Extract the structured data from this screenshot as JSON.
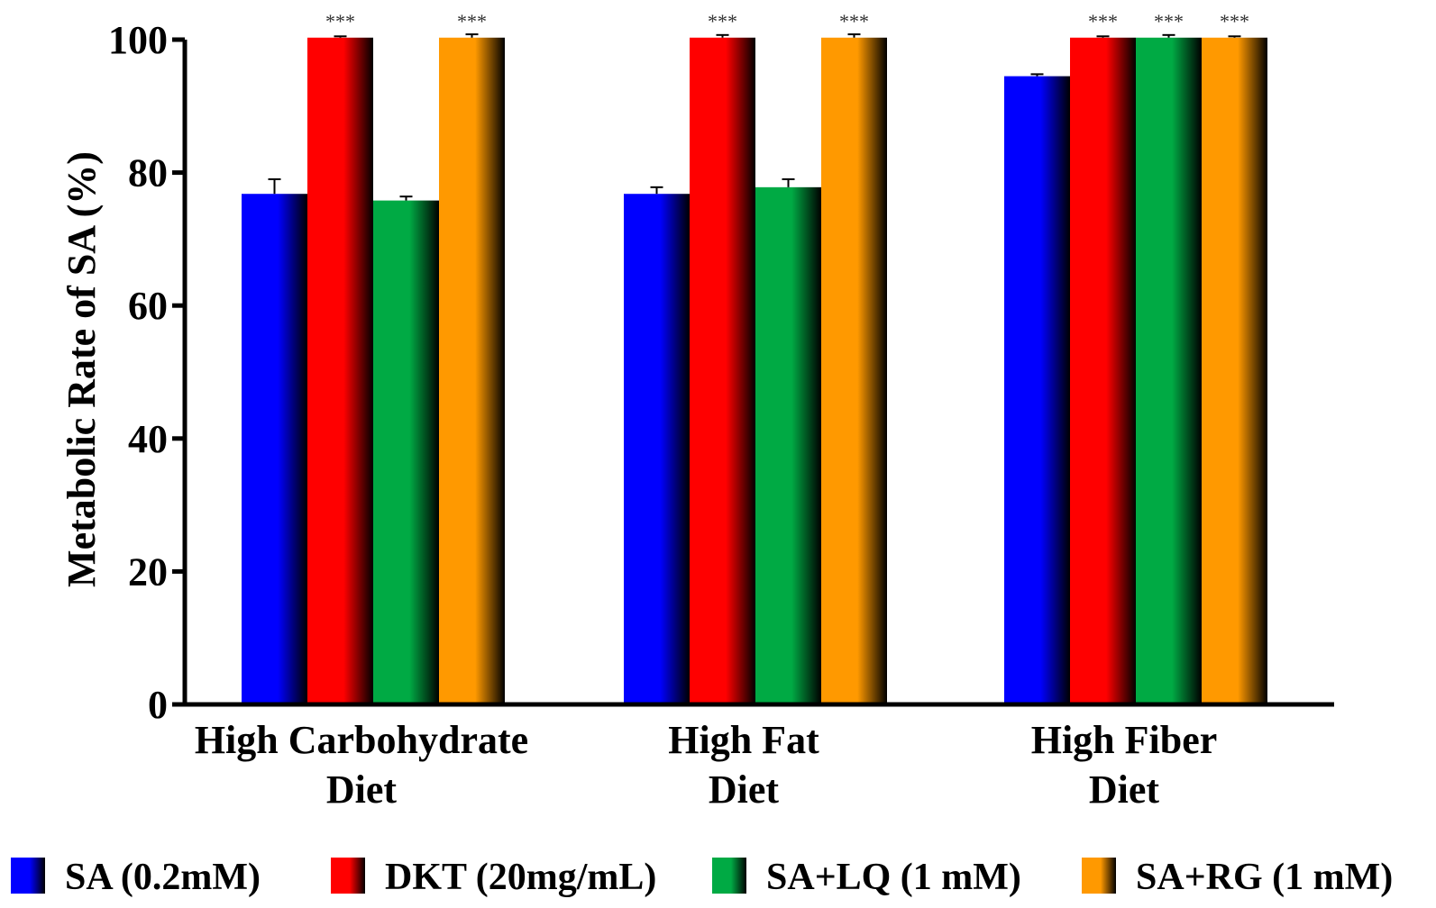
{
  "chart_data": {
    "type": "bar",
    "title": "",
    "xlabel": "",
    "ylabel": "Metabolic Rate of SA (%)",
    "ylim": [
      0,
      100
    ],
    "yticks": [
      0,
      20,
      40,
      60,
      80,
      100
    ],
    "grid": false,
    "legend_position": "bottom",
    "categories": [
      [
        "High Carbohydrate",
        "Diet"
      ],
      [
        "High Fat",
        "Diet"
      ],
      [
        "High Fiber",
        "Diet"
      ]
    ],
    "series": [
      {
        "name": "SA (0.2mM)",
        "color": "#0000ff",
        "values": [
          76.8,
          76.8,
          94.5
        ],
        "errors": [
          2.2,
          1.0,
          0.3
        ],
        "significance": [
          "",
          "",
          ""
        ]
      },
      {
        "name": "DKT (20mg/mL)",
        "color": "#ff0000",
        "values": [
          100.3,
          100.3,
          100.3
        ],
        "errors": [
          0.2,
          0.4,
          0.2
        ],
        "significance": [
          "***",
          "***",
          "***"
        ]
      },
      {
        "name": "SA+LQ (1 mM)",
        "color": "#00aa44",
        "values": [
          75.8,
          77.8,
          100.3
        ],
        "errors": [
          0.6,
          1.2,
          0.4
        ],
        "significance": [
          "",
          "",
          "***"
        ]
      },
      {
        "name": "SA+RG (1 mM)",
        "color": "#ff9900",
        "values": [
          100.3,
          100.3,
          100.3
        ],
        "errors": [
          0.5,
          0.5,
          0.2
        ],
        "significance": [
          "***",
          "***",
          "***"
        ]
      }
    ]
  }
}
